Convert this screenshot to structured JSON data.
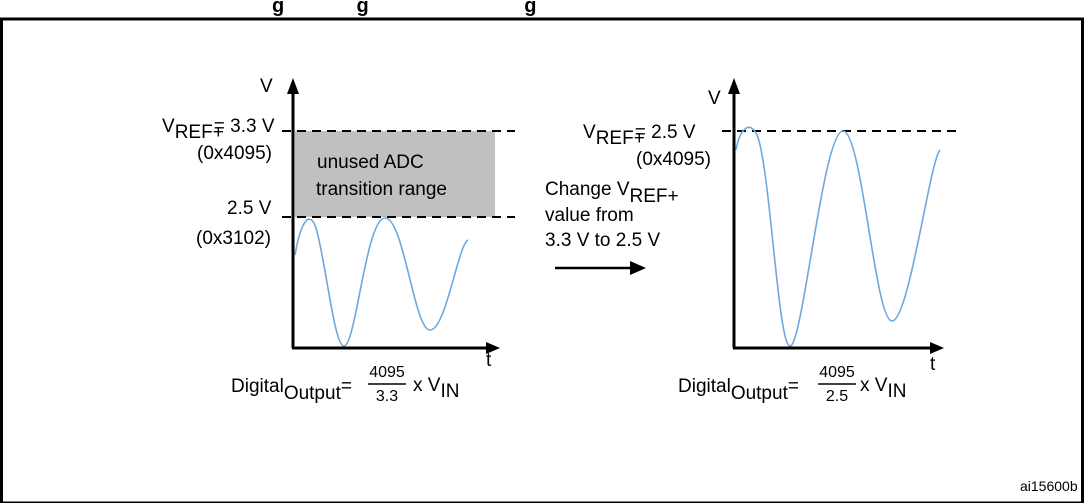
{
  "caption": {
    "visible_text": "g             g                            g"
  },
  "left_chart": {
    "y_axis_label": "V",
    "x_axis_label": "t",
    "vref_prefix": "V",
    "vref_subscript": "REF+",
    "vref_value": "= 3.3 V",
    "vref_hex": "(0x4095)",
    "level_value": "2.5 V",
    "level_hex": "(0x3102)",
    "unused_line1": "unused ADC",
    "unused_line2": "transition range",
    "formula": {
      "prefix": "Digital",
      "subscript": "Output",
      "equals": "=",
      "numerator": "4095",
      "denominator": "3.3",
      "suffix": "x V",
      "suffix_subscript": "IN"
    }
  },
  "middle_note": {
    "line1_prefix": "Change V",
    "line1_subscript": "REF+",
    "line2": "value from",
    "line3": "3.3 V to 2.5 V"
  },
  "right_chart": {
    "y_axis_label": "V",
    "x_axis_label": "t",
    "vref_prefix": "V",
    "vref_subscript": "REF+",
    "vref_value": "= 2.5 V",
    "vref_hex": "(0x4095)",
    "formula": {
      "prefix": "Digital",
      "subscript": "Output",
      "equals": "=",
      "numerator": "4095",
      "denominator": "2.5",
      "suffix": "x V",
      "suffix_subscript": "IN"
    }
  },
  "figure_id": "ai15600b",
  "colors": {
    "frame": "#000000",
    "unused_band": "#c0c0c0",
    "waveform": "#6fa8dc",
    "text": "#000000"
  }
}
